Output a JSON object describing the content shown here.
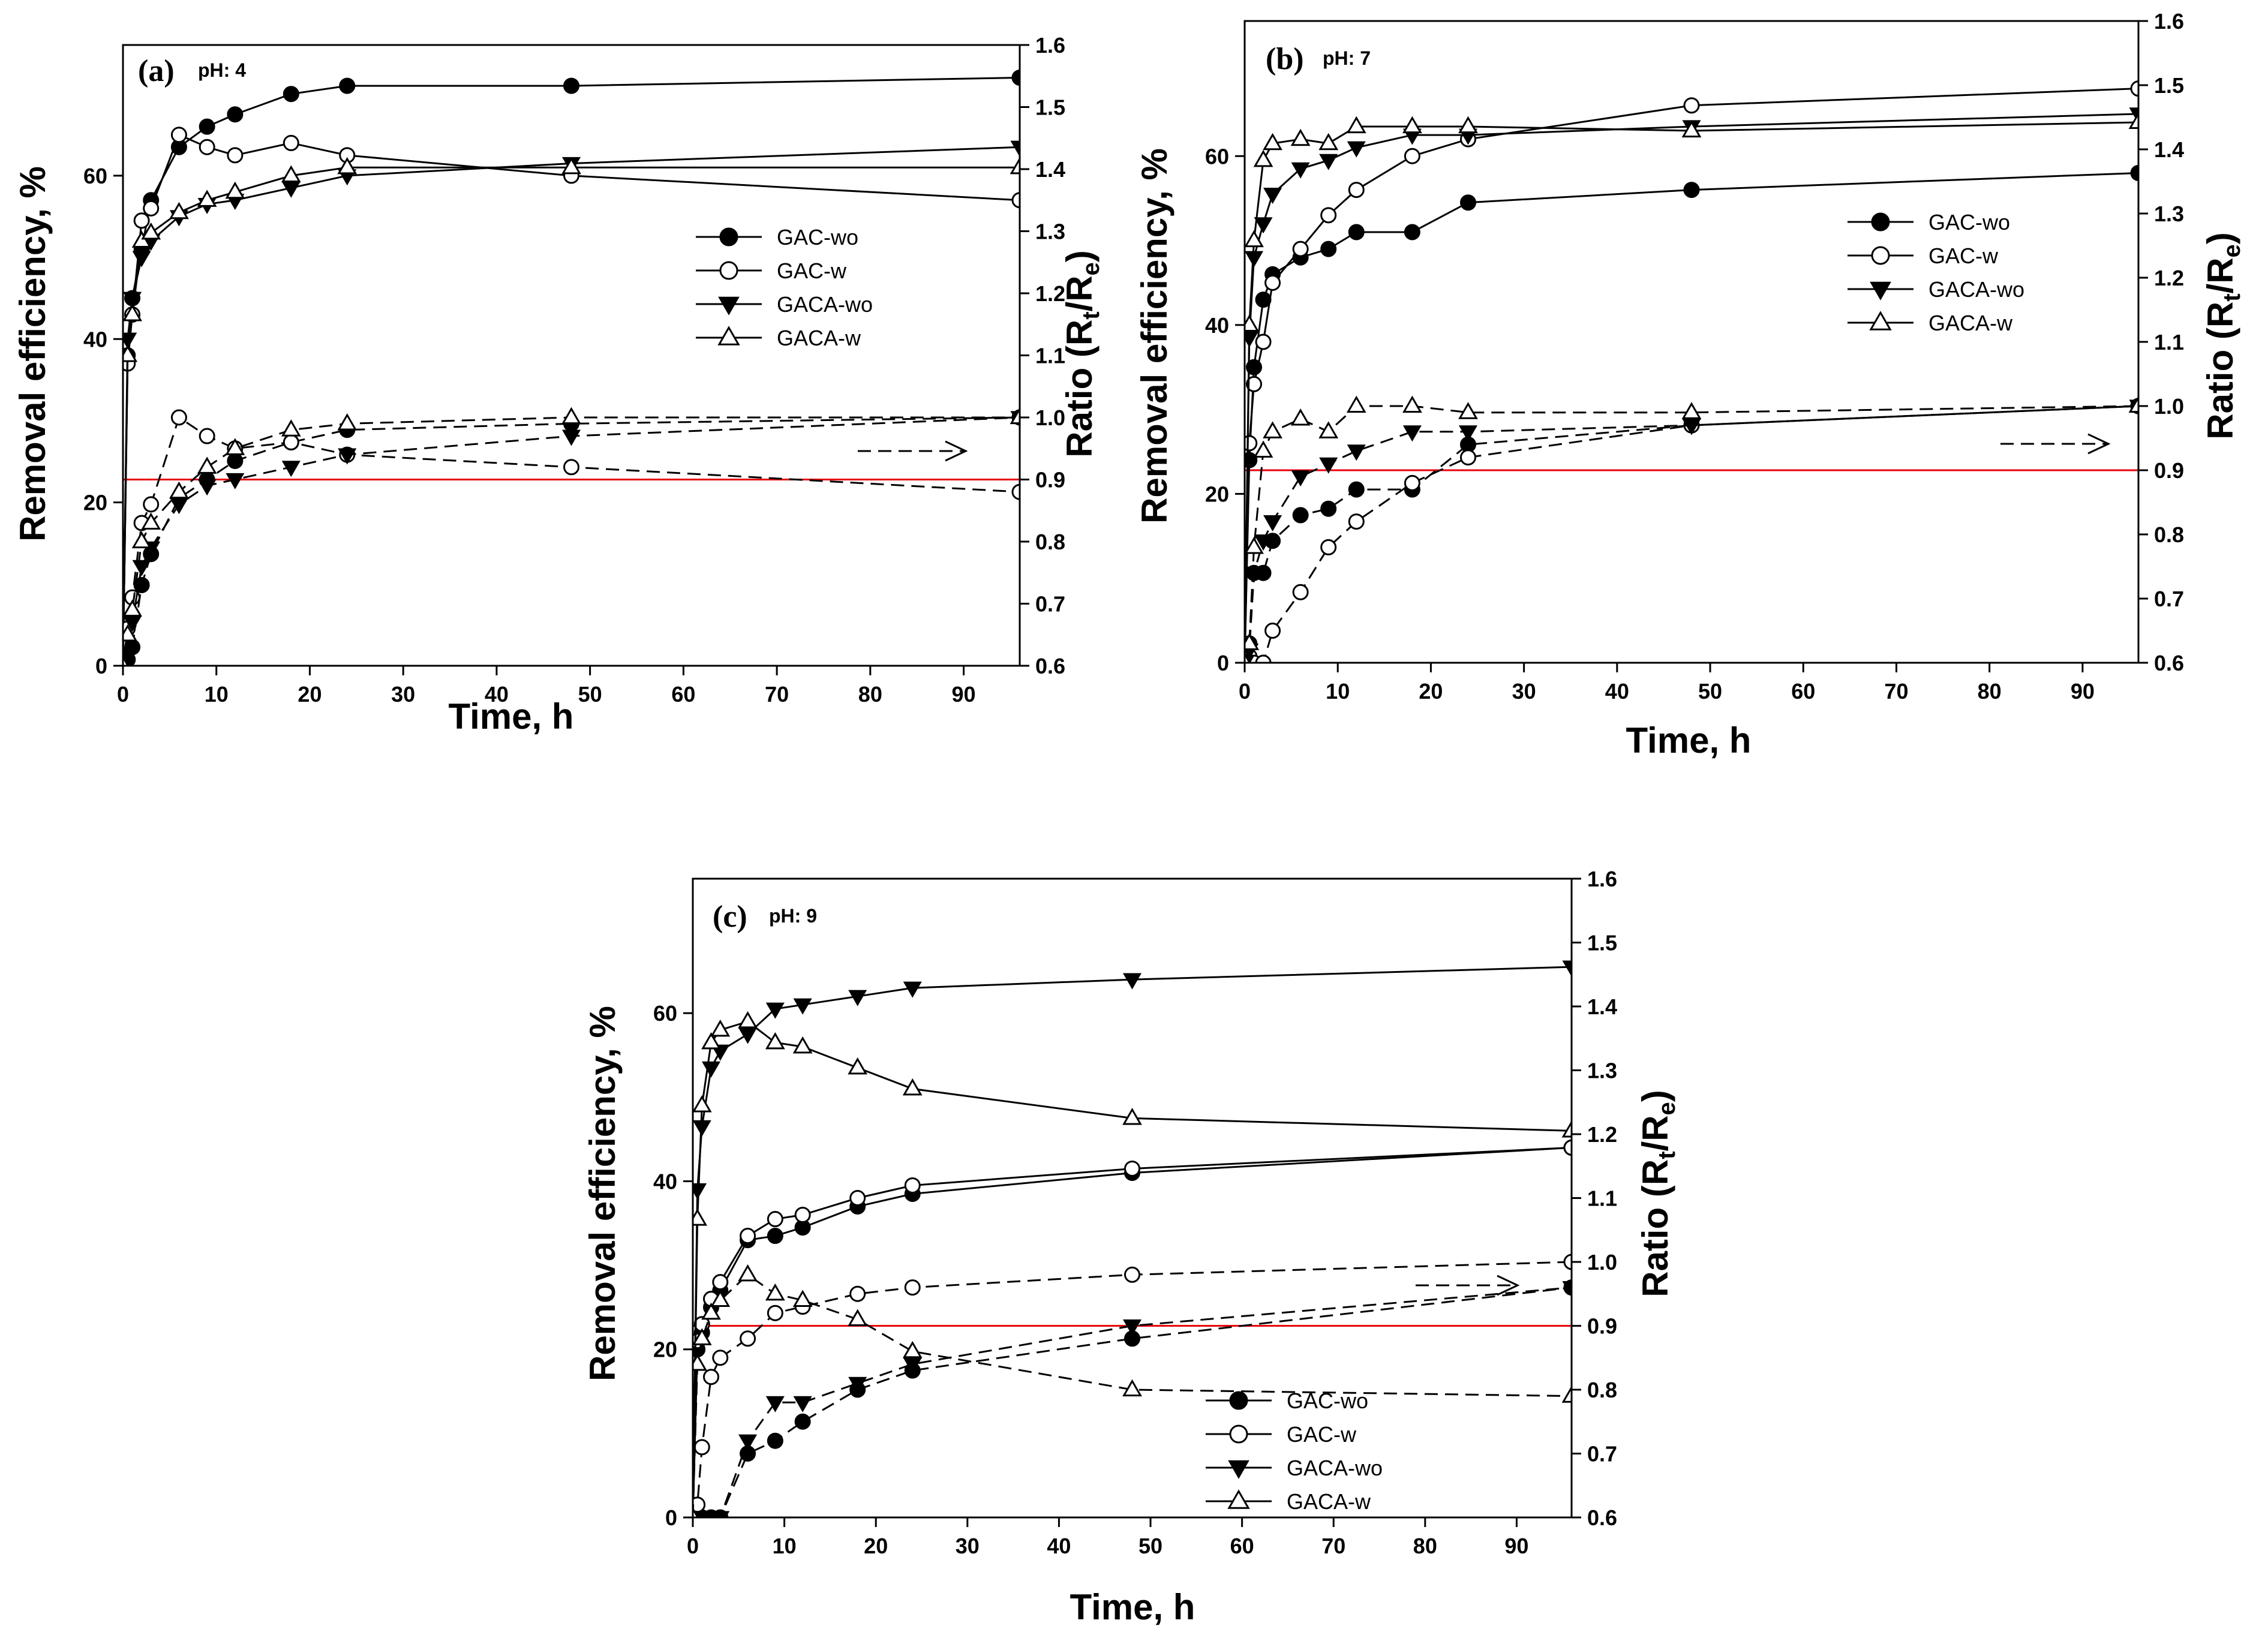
{
  "chart_data": [
    {
      "type": "line",
      "panel_label": "(a)",
      "ph_label": "pH: 4",
      "xlabel": "Time, h",
      "ylabel": "Removal efficiency, %",
      "y2label": "Ratio (Rt/Re)",
      "xlim": [
        0,
        96
      ],
      "ylim": [
        0,
        76
      ],
      "y2lim": [
        0.6,
        1.6
      ],
      "xticks": [
        0,
        10,
        20,
        30,
        40,
        50,
        60,
        70,
        80,
        90
      ],
      "yticks": [
        0,
        20,
        40,
        60
      ],
      "y2ticks": [
        0.6,
        0.7,
        0.8,
        0.9,
        1.0,
        1.1,
        1.2,
        1.3,
        1.4,
        1.5,
        1.6
      ],
      "reference_line_ratio": 0.9,
      "legend": [
        "GAC-wo",
        "GAC-w",
        "GACA-wo",
        "GACA-w"
      ],
      "legend_position": "right-middle",
      "x": [
        0,
        0.5,
        1,
        2,
        3,
        6,
        9,
        12,
        18,
        24,
        48,
        96
      ],
      "series": [
        {
          "name": "GAC-wo",
          "marker": "circle-filled",
          "axis": "left",
          "values": [
            0,
            38,
            45,
            51,
            57,
            63.5,
            66,
            67.5,
            70,
            71,
            71,
            72
          ]
        },
        {
          "name": "GAC-w",
          "marker": "circle-open",
          "axis": "left",
          "values": [
            0,
            37,
            43,
            54.5,
            56,
            65,
            63.5,
            62.5,
            64,
            62.5,
            60,
            57
          ]
        },
        {
          "name": "GACA-wo",
          "marker": "triangle-down-filled",
          "axis": "left",
          "values": [
            0,
            40,
            45,
            50,
            52,
            55,
            56.5,
            57,
            58.5,
            60,
            61.5,
            63.5
          ]
        },
        {
          "name": "GACA-w",
          "marker": "triangle-up-open",
          "axis": "left",
          "values": [
            0,
            38,
            43,
            52,
            53,
            55.5,
            57,
            58,
            60,
            61,
            61,
            61
          ]
        },
        {
          "name": "GAC-wo",
          "marker": "circle-filled",
          "axis": "right",
          "dashed": true,
          "values": [
            0.6,
            0.61,
            0.63,
            0.73,
            0.78,
            0.87,
            0.9,
            0.93,
            0.96,
            0.98,
            0.99,
            1.0
          ]
        },
        {
          "name": "GAC-w",
          "marker": "circle-open",
          "axis": "right",
          "dashed": true,
          "values": [
            0.6,
            0.66,
            0.71,
            0.83,
            0.86,
            1.0,
            0.97,
            0.95,
            0.96,
            0.94,
            0.92,
            0.88
          ]
        },
        {
          "name": "GACA-wo",
          "marker": "triangle-down-filled",
          "axis": "right",
          "dashed": true,
          "values": [
            0.6,
            0.62,
            0.67,
            0.76,
            0.79,
            0.86,
            0.89,
            0.9,
            0.92,
            0.94,
            0.97,
            1.0
          ]
        },
        {
          "name": "GACA-w",
          "marker": "triangle-up-open",
          "axis": "right",
          "dashed": true,
          "values": [
            0.6,
            0.65,
            0.69,
            0.8,
            0.83,
            0.88,
            0.92,
            0.95,
            0.98,
            0.99,
            1.0,
            1.0
          ]
        }
      ]
    },
    {
      "type": "line",
      "panel_label": "(b)",
      "ph_label": "pH: 7",
      "xlabel": "Time, h",
      "ylabel": "Removal efficiency, %",
      "y2label": "Ratio (Rt/Re)",
      "xlim": [
        0,
        96
      ],
      "ylim": [
        0,
        76
      ],
      "y2lim": [
        0.6,
        1.6
      ],
      "xticks": [
        0,
        10,
        20,
        30,
        40,
        50,
        60,
        70,
        80,
        90
      ],
      "yticks": [
        0,
        20,
        40,
        60
      ],
      "y2ticks": [
        0.6,
        0.7,
        0.8,
        0.9,
        1.0,
        1.1,
        1.2,
        1.3,
        1.4,
        1.5,
        1.6
      ],
      "reference_line_ratio": 0.9,
      "legend": [
        "GAC-wo",
        "GAC-w",
        "GACA-wo",
        "GACA-w"
      ],
      "legend_position": "right-middle",
      "x": [
        0,
        0.5,
        1,
        2,
        3,
        6,
        9,
        12,
        18,
        24,
        48,
        96
      ],
      "series": [
        {
          "name": "GAC-wo",
          "marker": "circle-filled",
          "axis": "left",
          "values": [
            0,
            24,
            35,
            43,
            46,
            48,
            49,
            51,
            51,
            54.5,
            56,
            58
          ]
        },
        {
          "name": "GAC-w",
          "marker": "circle-open",
          "axis": "left",
          "values": [
            0,
            26,
            33,
            38,
            45,
            49,
            53,
            56,
            60,
            62,
            66,
            68
          ]
        },
        {
          "name": "GACA-wo",
          "marker": "triangle-down-filled",
          "axis": "left",
          "values": [
            0,
            38.5,
            48,
            52,
            55.5,
            58.5,
            59.5,
            61,
            62.5,
            62.5,
            63.5,
            65
          ]
        },
        {
          "name": "GACA-w",
          "marker": "triangle-up-open",
          "axis": "left",
          "values": [
            0,
            40,
            50,
            59.5,
            61.5,
            62,
            61.5,
            63.5,
            63.5,
            63.5,
            63,
            64
          ]
        },
        {
          "name": "GAC-wo",
          "marker": "circle-filled",
          "axis": "right",
          "dashed": true,
          "values": [
            0.6,
            0.63,
            0.74,
            0.74,
            0.79,
            0.83,
            0.84,
            0.87,
            0.87,
            0.94,
            0.97,
            1.0
          ]
        },
        {
          "name": "GAC-w",
          "marker": "circle-open",
          "axis": "right",
          "dashed": true,
          "values": [
            0.6,
            0.61,
            0.6,
            0.6,
            0.65,
            0.71,
            0.78,
            0.82,
            0.88,
            0.92,
            0.97,
            1.0
          ]
        },
        {
          "name": "GACA-wo",
          "marker": "triangle-down-filled",
          "axis": "right",
          "dashed": true,
          "values": [
            0.6,
            0.62,
            0.74,
            0.79,
            0.82,
            0.89,
            0.91,
            0.93,
            0.96,
            0.96,
            0.97,
            1.0
          ]
        },
        {
          "name": "GACA-w",
          "marker": "triangle-up-open",
          "axis": "right",
          "dashed": true,
          "values": [
            0.6,
            0.63,
            0.78,
            0.93,
            0.96,
            0.98,
            0.96,
            1.0,
            1.0,
            0.99,
            0.99,
            1.0
          ]
        }
      ]
    },
    {
      "type": "line",
      "panel_label": "(c)",
      "ph_label": "pH: 9",
      "xlabel": "Time, h",
      "ylabel": "Removal efficiency, %",
      "y2label": "Ratio (Rt/Re)",
      "xlim": [
        0,
        96
      ],
      "ylim": [
        0,
        76
      ],
      "y2lim": [
        0.6,
        1.6
      ],
      "xticks": [
        0,
        10,
        20,
        30,
        40,
        50,
        60,
        70,
        80,
        90
      ],
      "yticks": [
        0,
        20,
        40,
        60
      ],
      "y2ticks": [
        0.6,
        0.7,
        0.8,
        0.9,
        1.0,
        1.1,
        1.2,
        1.3,
        1.4,
        1.5,
        1.6
      ],
      "reference_line_ratio": 0.9,
      "legend": [
        "GAC-wo",
        "GAC-w",
        "GACA-wo",
        "GACA-w"
      ],
      "legend_position": "bottom-center",
      "x": [
        0,
        0.5,
        1,
        2,
        3,
        6,
        9,
        12,
        18,
        24,
        48,
        96
      ],
      "series": [
        {
          "name": "GAC-wo",
          "marker": "circle-filled",
          "axis": "left",
          "values": [
            0,
            20,
            22,
            25,
            27,
            33,
            33.5,
            34.5,
            37,
            38.5,
            41,
            44
          ]
        },
        {
          "name": "GAC-w",
          "marker": "circle-open",
          "axis": "left",
          "values": [
            0,
            21,
            23,
            26,
            28,
            33.5,
            35.5,
            36,
            38,
            39.5,
            41.5,
            44
          ]
        },
        {
          "name": "GACA-wo",
          "marker": "triangle-down-filled",
          "axis": "left",
          "values": [
            0,
            39,
            46.5,
            53.5,
            55.5,
            57.5,
            60.5,
            61,
            62,
            63,
            64,
            65.5
          ]
        },
        {
          "name": "GACA-w",
          "marker": "triangle-up-open",
          "axis": "left",
          "values": [
            0,
            35.5,
            49,
            56.5,
            58,
            59,
            56.5,
            56,
            53.5,
            51,
            47.5,
            46
          ]
        },
        {
          "name": "GAC-wo",
          "marker": "circle-filled",
          "axis": "right",
          "dashed": true,
          "values": [
            0.6,
            0.6,
            0.6,
            0.6,
            0.6,
            0.7,
            0.72,
            0.75,
            0.8,
            0.83,
            0.88,
            0.96
          ]
        },
        {
          "name": "GAC-w",
          "marker": "circle-open",
          "axis": "right",
          "dashed": true,
          "values": [
            0.6,
            0.62,
            0.71,
            0.82,
            0.85,
            0.88,
            0.92,
            0.93,
            0.95,
            0.96,
            0.98,
            1.0
          ]
        },
        {
          "name": "GACA-wo",
          "marker": "triangle-down-filled",
          "axis": "right",
          "dashed": true,
          "values": [
            0.6,
            0.6,
            0.6,
            0.6,
            0.6,
            0.72,
            0.78,
            0.78,
            0.81,
            0.84,
            0.9,
            0.96
          ]
        },
        {
          "name": "GACA-w",
          "marker": "triangle-up-open",
          "axis": "right",
          "dashed": true,
          "values": [
            0.6,
            0.84,
            0.88,
            0.92,
            0.94,
            0.98,
            0.95,
            0.94,
            0.91,
            0.86,
            0.8,
            0.79
          ]
        }
      ]
    }
  ]
}
